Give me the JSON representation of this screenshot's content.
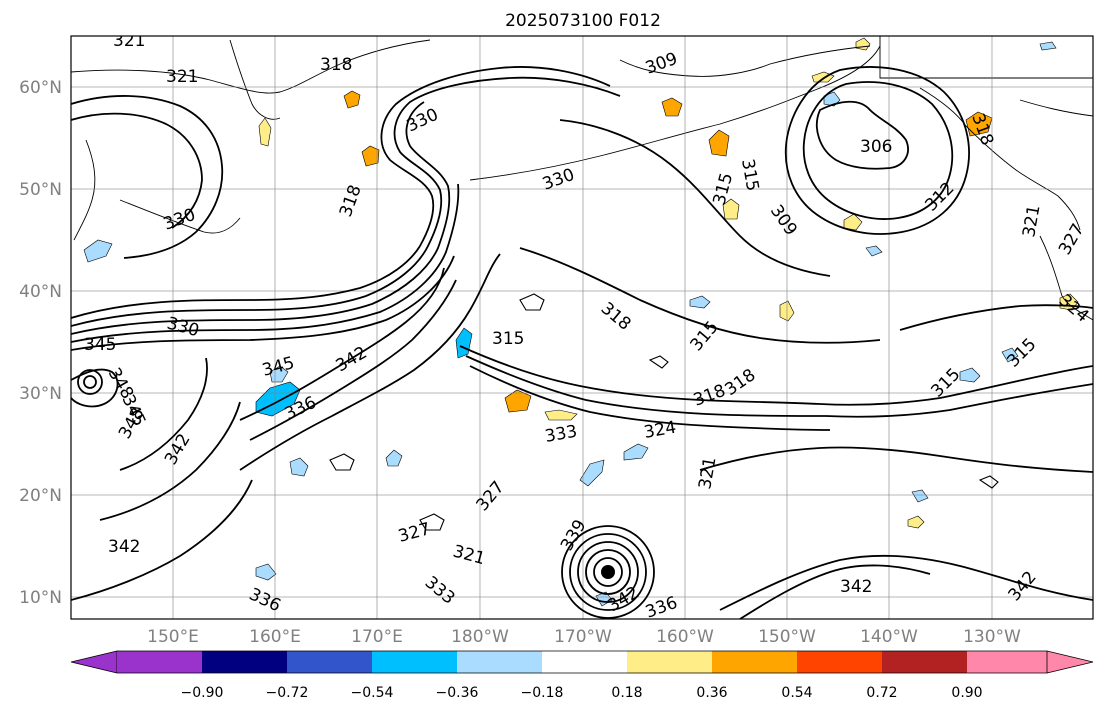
{
  "title": "2025073100 F012",
  "axes": {
    "x_ticks": [
      "150°E",
      "160°E",
      "170°E",
      "180°W",
      "170°W",
      "160°W",
      "150°W",
      "140°W",
      "130°W"
    ],
    "y_ticks": [
      "60°N",
      "50°N",
      "40°N",
      "30°N",
      "20°N",
      "10°N"
    ]
  },
  "colorbar": {
    "ticks": [
      "−0.90",
      "−0.72",
      "−0.54",
      "−0.36",
      "−0.18",
      "0.18",
      "0.36",
      "0.54",
      "0.72",
      "0.90"
    ],
    "colors": [
      "#9933cc",
      "#000080",
      "#3355cc",
      "#00bfff",
      "#aadcff",
      "#ffffff",
      "#ffee88",
      "#ffa500",
      "#ff4400",
      "#b22222",
      "#ff88aa"
    ]
  },
  "contour_labels": [
    {
      "id": "l1",
      "text": "321"
    },
    {
      "id": "l2",
      "text": "321"
    },
    {
      "id": "l3",
      "text": "318"
    },
    {
      "id": "l4",
      "text": "309"
    },
    {
      "id": "l5",
      "text": "330"
    },
    {
      "id": "l6",
      "text": "330"
    },
    {
      "id": "l7",
      "text": "318"
    },
    {
      "id": "l8",
      "text": "330"
    },
    {
      "id": "l9",
      "text": "315"
    },
    {
      "id": "l10",
      "text": "315"
    },
    {
      "id": "l11",
      "text": "309"
    },
    {
      "id": "l12",
      "text": "306"
    },
    {
      "id": "l13",
      "text": "312"
    },
    {
      "id": "l14",
      "text": "318"
    },
    {
      "id": "l15",
      "text": "321"
    },
    {
      "id": "l16",
      "text": "327"
    },
    {
      "id": "l17",
      "text": "324"
    },
    {
      "id": "l18",
      "text": "330"
    },
    {
      "id": "l19",
      "text": "345"
    },
    {
      "id": "l20",
      "text": "348"
    },
    {
      "id": "l21",
      "text": "345"
    },
    {
      "id": "l22",
      "text": "345"
    },
    {
      "id": "l23",
      "text": "342"
    },
    {
      "id": "l24",
      "text": "336"
    },
    {
      "id": "l25",
      "text": "348"
    },
    {
      "id": "l26",
      "text": "342"
    },
    {
      "id": "l27",
      "text": "315"
    },
    {
      "id": "l28",
      "text": "318"
    },
    {
      "id": "l29",
      "text": "315"
    },
    {
      "id": "l30",
      "text": "318"
    },
    {
      "id": "l31",
      "text": "318"
    },
    {
      "id": "l32",
      "text": "315"
    },
    {
      "id": "l33",
      "text": "315"
    },
    {
      "id": "l34",
      "text": "333"
    },
    {
      "id": "l35",
      "text": "324"
    },
    {
      "id": "l36",
      "text": "327"
    },
    {
      "id": "l37",
      "text": "321"
    },
    {
      "id": "l38",
      "text": "342"
    },
    {
      "id": "l39",
      "text": "327"
    },
    {
      "id": "l40",
      "text": "321"
    },
    {
      "id": "l41",
      "text": "333"
    },
    {
      "id": "l42",
      "text": "336"
    },
    {
      "id": "l43",
      "text": "339"
    },
    {
      "id": "l44",
      "text": "342"
    },
    {
      "id": "l45",
      "text": "336"
    },
    {
      "id": "l46",
      "text": "342"
    },
    {
      "id": "l47",
      "text": "342"
    },
    {
      "id": "l48",
      "text": "342"
    }
  ]
}
